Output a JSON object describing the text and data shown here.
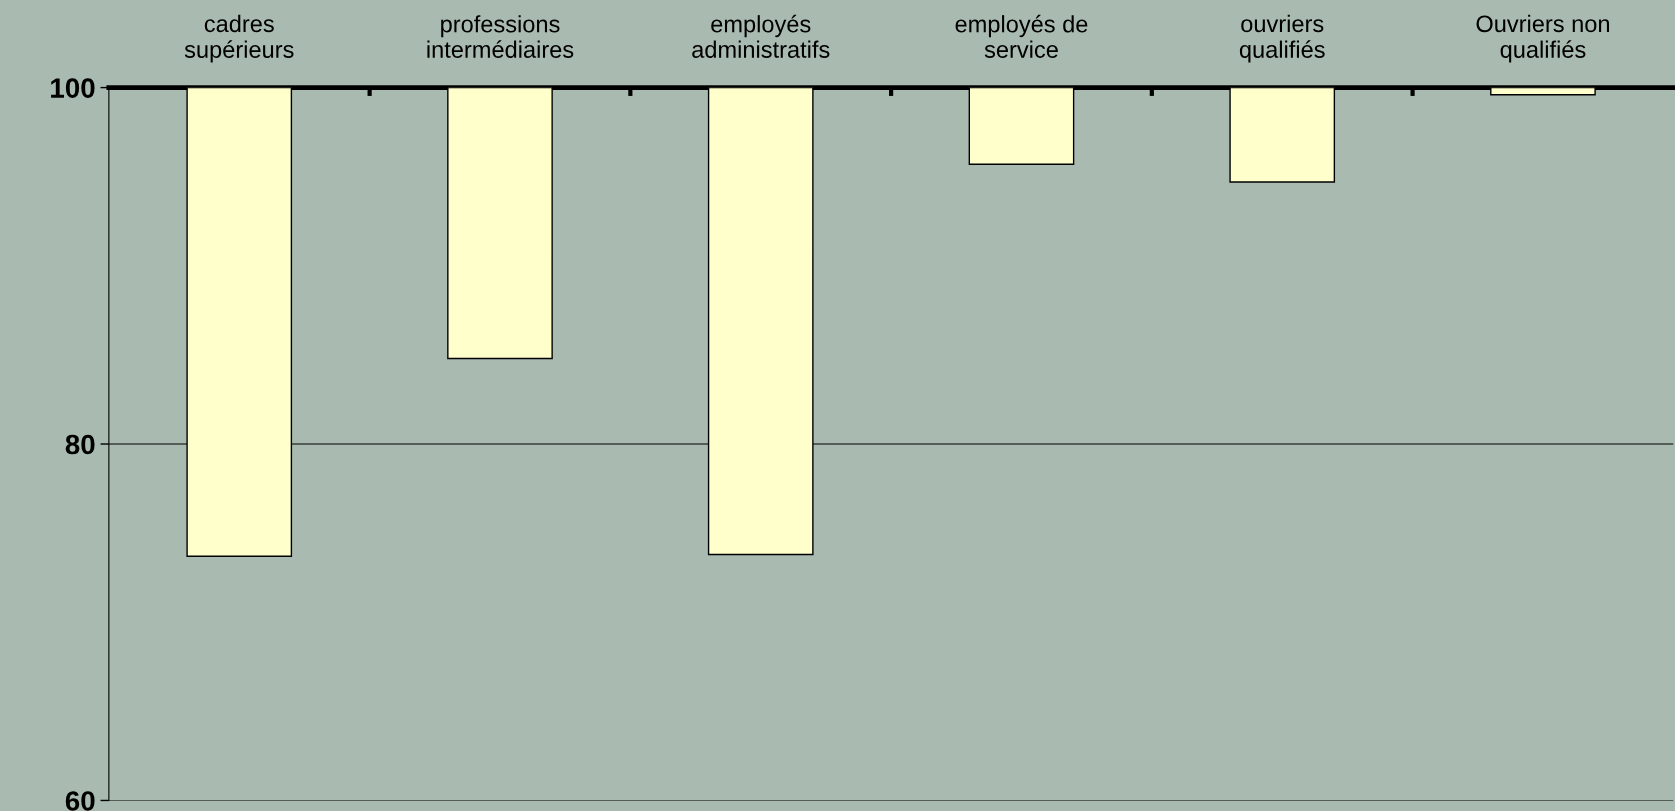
{
  "chart_data": {
    "type": "bar",
    "categories": [
      "cadres\nsupérieurs",
      "professions\nintermédiaires",
      "employés\nadministratifs",
      "employés de\nservice",
      "ouvriers\nqualifiés",
      "Ouvriers non\nqualifiés"
    ],
    "base": [
      100,
      100,
      100,
      100,
      100,
      100
    ],
    "values": [
      -26.3,
      -15.2,
      -26.2,
      -4.3,
      -5.3,
      -0.4
    ],
    "color": "#ffffcc",
    "ylim": [
      60,
      100
    ],
    "yticks": [
      60,
      80,
      100
    ],
    "grid": "y"
  }
}
